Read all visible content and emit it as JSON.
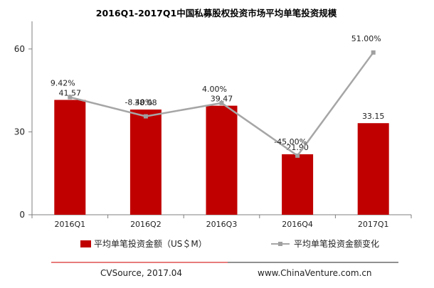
{
  "chart_data": {
    "type": "bar",
    "title": "2016Q1-2017Q1中国私募股权投资市场平均单笔投资规模",
    "categories": [
      "2016Q1",
      "2016Q2",
      "2016Q3",
      "2016Q4",
      "2017Q1"
    ],
    "series": [
      {
        "name": "平均单笔投资金额（US＄M）",
        "type": "bar",
        "values": [
          41.57,
          38.08,
          39.47,
          21.9,
          33.15
        ],
        "labels": [
          "41.57",
          "38.08",
          "39.47",
          "21.90",
          "33.15"
        ],
        "color": "#c00000"
      },
      {
        "name": "平均单笔投资金额变化",
        "type": "line",
        "values": [
          9.42,
          -8.4,
          4.0,
          -45.0,
          51.0
        ],
        "labels": [
          "9.42%",
          "-8.40%",
          "4.00%",
          "-45.00%",
          "51.00%"
        ],
        "color": "#a6a6a6"
      }
    ],
    "yaxis": {
      "ticks": [
        "0",
        "30",
        "60"
      ],
      "tick_values": [
        0,
        30,
        60
      ],
      "ylim": [
        0,
        70
      ]
    },
    "legend_position": "bottom",
    "grid": false
  },
  "footer": {
    "source": "CVSource, 2017.04",
    "website": "www.ChinaVenture.com.cn"
  }
}
